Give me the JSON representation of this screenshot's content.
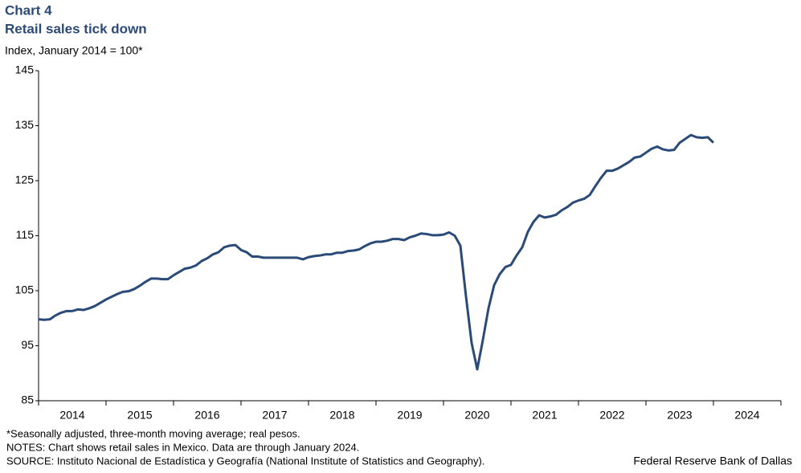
{
  "chart_data": {
    "type": "line",
    "title": "Chart 4",
    "subtitle": "Retail sales tick down",
    "y_label": "Index, January 2014 = 100*",
    "notes": [
      "*Seasonally adjusted, three-month moving average; real pesos.",
      "NOTES: Chart shows retail sales in Mexico. Data are through January 2024.",
      "SOURCE: Instituto Nacional de Estadística y Geografía (National Institute of Statistics and Geography)."
    ],
    "credit": "Federal Reserve Bank of Dallas",
    "x": [
      2014,
      2014.083,
      2014.167,
      2014.25,
      2014.333,
      2014.417,
      2014.5,
      2014.583,
      2014.667,
      2014.75,
      2014.833,
      2014.917,
      2015,
      2015.083,
      2015.167,
      2015.25,
      2015.333,
      2015.417,
      2015.5,
      2015.583,
      2015.667,
      2015.75,
      2015.833,
      2015.917,
      2016,
      2016.083,
      2016.167,
      2016.25,
      2016.333,
      2016.417,
      2016.5,
      2016.583,
      2016.667,
      2016.75,
      2016.833,
      2016.917,
      2017,
      2017.083,
      2017.167,
      2017.25,
      2017.333,
      2017.417,
      2017.5,
      2017.583,
      2017.667,
      2017.75,
      2017.833,
      2017.917,
      2018,
      2018.083,
      2018.167,
      2018.25,
      2018.333,
      2018.417,
      2018.5,
      2018.583,
      2018.667,
      2018.75,
      2018.833,
      2018.917,
      2019,
      2019.083,
      2019.167,
      2019.25,
      2019.333,
      2019.417,
      2019.5,
      2019.583,
      2019.667,
      2019.75,
      2019.833,
      2019.917,
      2020,
      2020.083,
      2020.167,
      2020.25,
      2020.333,
      2020.417,
      2020.5,
      2020.583,
      2020.667,
      2020.75,
      2020.833,
      2020.917,
      2021,
      2021.083,
      2021.167,
      2021.25,
      2021.333,
      2021.417,
      2021.5,
      2021.583,
      2021.667,
      2021.75,
      2021.833,
      2021.917,
      2022,
      2022.083,
      2022.167,
      2022.25,
      2022.333,
      2022.417,
      2022.5,
      2022.583,
      2022.667,
      2022.75,
      2022.833,
      2022.917,
      2023,
      2023.083,
      2023.167,
      2023.25,
      2023.333,
      2023.417,
      2023.5,
      2023.583,
      2023.667,
      2023.75,
      2023.833,
      2023.917,
      2024
    ],
    "series": [
      {
        "color": "#2a4a78",
        "values": [
          99.8,
          99.7,
          99.8,
          100.5,
          101,
          101.3,
          101.3,
          101.6,
          101.5,
          101.8,
          102.2,
          102.8,
          103.4,
          103.9,
          104.4,
          104.8,
          104.9,
          105.3,
          105.9,
          106.6,
          107.2,
          107.2,
          107.1,
          107.1,
          107.8,
          108.4,
          109,
          109.2,
          109.6,
          110.4,
          110.9,
          111.6,
          112,
          112.9,
          113.2,
          113.3,
          112.4,
          112,
          111.2,
          111.2,
          111,
          111,
          111,
          111,
          111,
          111,
          111,
          110.7,
          111.1,
          111.3,
          111.4,
          111.6,
          111.6,
          111.9,
          111.9,
          112.2,
          112.3,
          112.5,
          113.1,
          113.6,
          113.9,
          113.9,
          114.1,
          114.4,
          114.4,
          114.2,
          114.7,
          115,
          115.4,
          115.3,
          115.1,
          115.1,
          115.2,
          115.6,
          115,
          113.2,
          104,
          95.5,
          90.7,
          96,
          101.8,
          106,
          108,
          109.3,
          109.7,
          111.4,
          112.9,
          115.7,
          117.5,
          118.7,
          118.3,
          118.5,
          118.8,
          119.6,
          120.2,
          121,
          121.4,
          121.7,
          122.4,
          124,
          125.5,
          126.8,
          126.8,
          127.2,
          127.8,
          128.4,
          129.2,
          129.4,
          130.1,
          130.8,
          131.2,
          130.7,
          130.5,
          130.6,
          131.9,
          132.6,
          133.3,
          132.9,
          132.8,
          132.9,
          131.9
        ]
      }
    ],
    "xlim": [
      2014,
      2025
    ],
    "xticks": [
      2014,
      2015,
      2016,
      2017,
      2018,
      2019,
      2020,
      2021,
      2022,
      2023,
      2024
    ],
    "ylim": [
      85,
      145
    ],
    "yticks": [
      85,
      95,
      105,
      115,
      125,
      135,
      145
    ],
    "grid": false
  }
}
